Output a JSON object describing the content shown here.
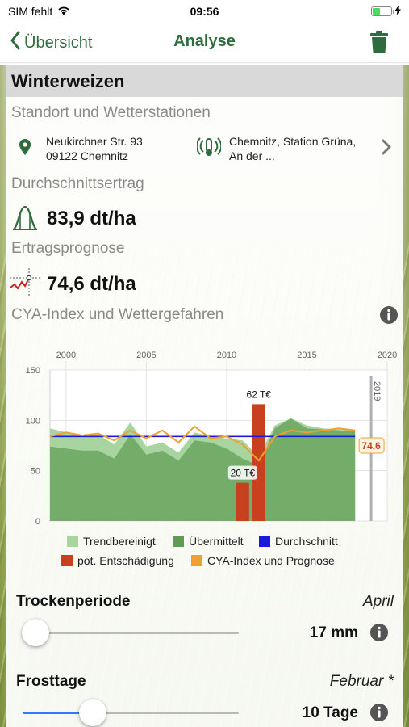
{
  "status_bar": {
    "carrier": "SIM fehlt",
    "time": "09:56"
  },
  "nav": {
    "back_label": "Übersicht",
    "title": "Analyse"
  },
  "crop": "Winterweizen",
  "location": {
    "section_title": "Standort und Wetterstationen",
    "address_line1": "Neukirchner Str. 93",
    "address_line2": "09122 Chemnitz",
    "station_line1": "Chemnitz, Station Grüna,",
    "station_line2": "An der ..."
  },
  "average_yield": {
    "section_title": "Durchschnittsertrag",
    "value": "83,9 dt/ha"
  },
  "forecast": {
    "section_title": "Ertragsprognose",
    "value": "74,6 dt/ha"
  },
  "cya": {
    "section_title": "CYA-Index und Wettergefahren"
  },
  "chart_data": {
    "type": "area",
    "x_ticks": [
      "2000",
      "2005",
      "2010",
      "2015",
      "2020"
    ],
    "y_ticks": [
      "0",
      "50",
      "100",
      "150"
    ],
    "ylim": [
      0,
      150
    ],
    "xlim": [
      1999,
      2020
    ],
    "highlight_year_label": "2019",
    "years": [
      1999,
      2000,
      2001,
      2002,
      2003,
      2004,
      2005,
      2006,
      2007,
      2008,
      2009,
      2010,
      2011,
      2012,
      2013,
      2014,
      2015,
      2016,
      2017,
      2018
    ],
    "series": [
      {
        "name": "Trendbereinigt",
        "color": "#a8d4a0",
        "values": [
          92,
          88,
          84,
          86,
          76,
          98,
          74,
          78,
          68,
          88,
          84,
          82,
          80,
          64,
          95,
          102,
          95,
          92,
          91,
          90
        ]
      },
      {
        "name": "Übermittelt",
        "color": "#74ad6a",
        "values": [
          74,
          72,
          70,
          70,
          62,
          86,
          66,
          70,
          60,
          80,
          78,
          72,
          62,
          55,
          92,
          102,
          92,
          91,
          90,
          89
        ]
      },
      {
        "name": "Durchschnitt",
        "color": "#1a1adf",
        "values": [
          84,
          84,
          84,
          84,
          84,
          84,
          84,
          84,
          84,
          84,
          84,
          84,
          84,
          84,
          84,
          84,
          84,
          84,
          84,
          84
        ]
      },
      {
        "name": "CYA-Index und Prognose",
        "color": "#f0a030",
        "values": [
          84,
          88,
          85,
          87,
          80,
          90,
          82,
          90,
          78,
          94,
          82,
          84,
          76,
          60,
          84,
          90,
          88,
          90,
          92,
          90
        ]
      }
    ],
    "compensation": {
      "name": "pot. Entschädigung",
      "color": "#c8401e",
      "bars": [
        {
          "year": 2011,
          "value": 38,
          "label": "20 T€"
        },
        {
          "year": 2012,
          "value": 116,
          "label": "62 T€"
        }
      ]
    },
    "forecast_marker": {
      "year": 2019,
      "value": 74.6,
      "label": "74,6"
    }
  },
  "legend": {
    "trend": "Trendbereinigt",
    "submitted": "Übermittelt",
    "average": "Durchschnitt",
    "compensation": "pot. Entschädigung",
    "cya": "CYA-Index und Prognose"
  },
  "sliders": {
    "drought": {
      "title": "Trockenperiode",
      "month": "April",
      "value": "17 mm",
      "level": 0.0
    },
    "frost": {
      "title": "Frosttage",
      "month": "Februar *",
      "value": "10 Tage",
      "level": 0.3
    }
  },
  "colors": {
    "accent": "#2e6b3d",
    "slider_fill": "#3478f6"
  }
}
